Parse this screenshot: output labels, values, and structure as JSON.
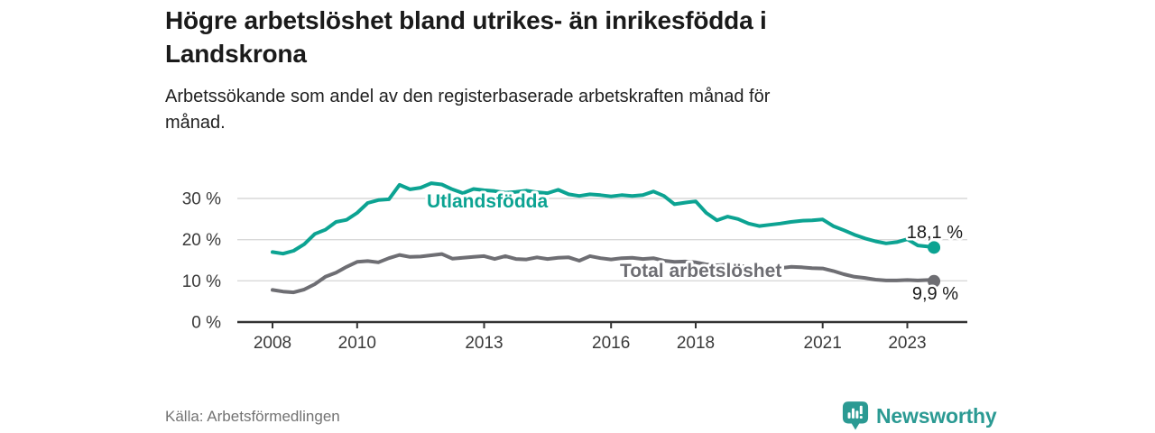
{
  "header": {
    "title": "Högre arbetslöshet bland utrikes- än inrikesfödda i\nLandskrona",
    "subtitle": "Arbetssökande som andel av den registerbaserade arbetskraften månad för\nmånad."
  },
  "footer": {
    "source": "Källa: Arbetsförmedlingen",
    "brand": "Newsworthy"
  },
  "colors": {
    "accent_teal": "#0ca392",
    "series_gray": "#6e6e73",
    "axis_line": "#333333",
    "gridline": "#d9d9d9",
    "tick_text": "#3a3a3a",
    "title_text": "#1a1a1a",
    "source_text": "#737373",
    "logo_teal": "#2b9a93"
  },
  "chart_data": {
    "type": "line",
    "title": "Högre arbetslöshet bland utrikes- än inrikesfödda i Landskrona",
    "subtitle": "Arbetssökande som andel av den registerbaserade arbetskraften månad för månad.",
    "ylabel": "",
    "xlabel": "",
    "ylim": [
      0,
      36
    ],
    "xlim": [
      2007.2,
      2024.4
    ],
    "grid": "horizontal",
    "legend_position": "inline-labels",
    "y_ticks": [
      {
        "value": 0,
        "label": "0 %"
      },
      {
        "value": 10,
        "label": "10 %"
      },
      {
        "value": 20,
        "label": "20 %"
      },
      {
        "value": 30,
        "label": "30 %"
      }
    ],
    "x_ticks": [
      {
        "value": 2008,
        "label": "2008"
      },
      {
        "value": 2010,
        "label": "2010"
      },
      {
        "value": 2013,
        "label": "2013"
      },
      {
        "value": 2016,
        "label": "2016"
      },
      {
        "value": 2018,
        "label": "2018"
      },
      {
        "value": 2021,
        "label": "2021"
      },
      {
        "value": 2023,
        "label": "2023"
      }
    ],
    "x": [
      2008.0,
      2008.25,
      2008.5,
      2008.75,
      2009.0,
      2009.25,
      2009.5,
      2009.75,
      2010.0,
      2010.25,
      2010.5,
      2010.75,
      2011.0,
      2011.25,
      2011.5,
      2011.75,
      2012.0,
      2012.25,
      2012.5,
      2012.75,
      2013.0,
      2013.25,
      2013.5,
      2013.75,
      2014.0,
      2014.25,
      2014.5,
      2014.75,
      2015.0,
      2015.25,
      2015.5,
      2015.75,
      2016.0,
      2016.25,
      2016.5,
      2016.75,
      2017.0,
      2017.25,
      2017.5,
      2017.75,
      2018.0,
      2018.25,
      2018.5,
      2018.75,
      2019.0,
      2019.25,
      2019.5,
      2019.75,
      2020.0,
      2020.25,
      2020.5,
      2020.75,
      2021.0,
      2021.25,
      2021.5,
      2021.75,
      2022.0,
      2022.25,
      2022.5,
      2022.75,
      2023.0,
      2023.25,
      2023.5,
      2023.63
    ],
    "series": [
      {
        "name": "Utlandsfödda",
        "color": "#0ca392",
        "end_label": "18,1 %",
        "end_value": 18.1,
        "values": [
          17.0,
          16.6,
          17.3,
          18.9,
          21.4,
          22.4,
          24.3,
          24.8,
          26.5,
          28.9,
          29.6,
          29.8,
          33.3,
          32.2,
          32.6,
          33.7,
          33.4,
          32.2,
          31.3,
          32.3,
          32.0,
          31.8,
          31.4,
          31.6,
          31.9,
          31.5,
          31.3,
          32.1,
          31.0,
          30.6,
          31.0,
          30.8,
          30.5,
          30.8,
          30.6,
          30.8,
          31.7,
          30.6,
          28.6,
          29.0,
          29.3,
          26.5,
          24.7,
          25.6,
          25.0,
          23.9,
          23.3,
          23.6,
          23.9,
          24.3,
          24.6,
          24.7,
          24.9,
          23.3,
          22.3,
          21.2,
          20.3,
          19.6,
          19.1,
          19.4,
          20.1,
          18.6,
          18.3,
          18.1
        ]
      },
      {
        "name": "Total arbetslöshet",
        "color": "#6e6e73",
        "end_label": "9,9 %",
        "end_value": 9.9,
        "values": [
          7.8,
          7.4,
          7.2,
          7.9,
          9.2,
          11.0,
          12.0,
          13.4,
          14.6,
          14.8,
          14.5,
          15.5,
          16.3,
          15.8,
          15.9,
          16.2,
          16.5,
          15.4,
          15.6,
          15.8,
          16.0,
          15.3,
          16.0,
          15.3,
          15.2,
          15.7,
          15.3,
          15.6,
          15.7,
          14.9,
          16.0,
          15.5,
          15.2,
          15.5,
          15.6,
          15.3,
          15.5,
          14.9,
          14.6,
          14.7,
          14.5,
          14.0,
          13.8,
          13.9,
          13.7,
          13.4,
          13.2,
          13.3,
          13.1,
          13.4,
          13.3,
          13.1,
          13.0,
          12.4,
          11.6,
          11.0,
          10.7,
          10.3,
          10.1,
          10.1,
          10.2,
          10.1,
          10.2,
          9.9
        ]
      }
    ]
  }
}
